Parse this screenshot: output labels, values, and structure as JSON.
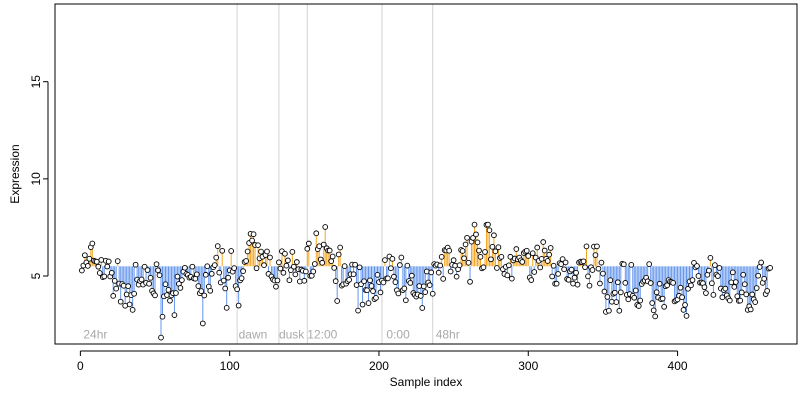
{
  "chart_data": {
    "type": "scatter",
    "xlabel": "Sample index",
    "ylabel": "Expression",
    "xlim": [
      -17,
      480
    ],
    "ylim": [
      1.5,
      19.0
    ],
    "xticks": [
      0,
      100,
      200,
      300,
      400
    ],
    "yticks": [
      5,
      10,
      15
    ],
    "baseline": 5.5,
    "colors": {
      "above": "#f5a623",
      "below": "#6495ed",
      "point_edge": "#000000",
      "vline": "#d3d3d3",
      "annotation": "#a9a9a9"
    },
    "annotations": [
      {
        "x": 2,
        "text": "24hr"
      },
      {
        "x": 106,
        "text": "dawn"
      },
      {
        "x": 133,
        "text": "dusk"
      },
      {
        "x": 152,
        "text": "12:00"
      },
      {
        "x": 205,
        "text": "0:00"
      },
      {
        "x": 238,
        "text": "48hr"
      }
    ],
    "vlines": [
      105,
      133,
      152,
      202,
      236
    ],
    "annotation_y": 2.0,
    "series": [
      {
        "anchors": [
          [
            0,
            5.6
          ],
          [
            10,
            5.4
          ],
          [
            20,
            4.8
          ],
          [
            30,
            4.4
          ],
          [
            40,
            4.3
          ],
          [
            50,
            4.6
          ],
          [
            60,
            4.3
          ],
          [
            70,
            4.0
          ],
          [
            80,
            4.6
          ],
          [
            90,
            5.0
          ],
          [
            100,
            5.2
          ],
          [
            110,
            5.6
          ],
          [
            120,
            5.9
          ],
          [
            130,
            5.8
          ],
          [
            135,
            5.1
          ],
          [
            140,
            4.8
          ],
          [
            150,
            5.6
          ],
          [
            160,
            6.4
          ],
          [
            170,
            5.8
          ],
          [
            180,
            4.6
          ],
          [
            190,
            4.5
          ],
          [
            200,
            4.9
          ],
          [
            210,
            5.4
          ],
          [
            220,
            4.6
          ],
          [
            230,
            4.5
          ],
          [
            240,
            5.6
          ],
          [
            250,
            6.0
          ],
          [
            260,
            6.5
          ],
          [
            270,
            6.3
          ],
          [
            280,
            5.9
          ],
          [
            290,
            5.5
          ],
          [
            300,
            5.6
          ],
          [
            310,
            5.9
          ],
          [
            320,
            5.6
          ],
          [
            330,
            5.3
          ],
          [
            340,
            5.0
          ],
          [
            350,
            4.9
          ],
          [
            360,
            4.4
          ],
          [
            370,
            4.1
          ],
          [
            380,
            4.4
          ],
          [
            390,
            4.0
          ],
          [
            400,
            3.7
          ],
          [
            410,
            4.2
          ],
          [
            420,
            4.5
          ],
          [
            430,
            4.4
          ],
          [
            440,
            4.3
          ],
          [
            450,
            4.0
          ],
          [
            460,
            4.5
          ]
        ],
        "n": 462,
        "noise": 0.55
      }
    ]
  }
}
